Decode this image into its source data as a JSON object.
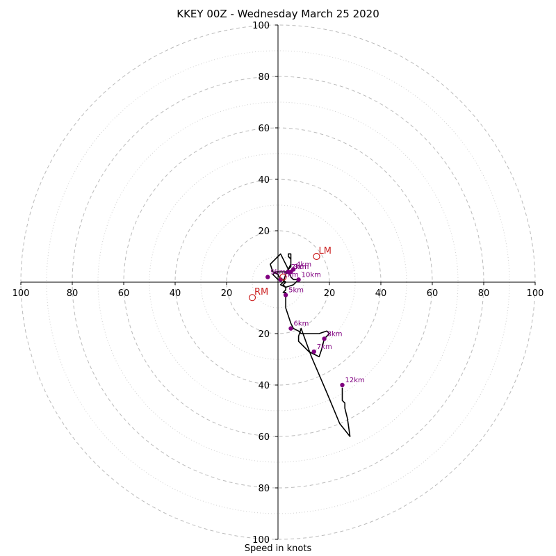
{
  "chart_data": {
    "type": "hodograph",
    "title": "KKEY 00Z - Wednesday March 25 2020",
    "xlabel": "Speed in knots",
    "ylabel": "",
    "range": [
      -100,
      100
    ],
    "major_rings": [
      20,
      40,
      60,
      80,
      100
    ],
    "minor_rings": [
      10,
      30,
      50,
      70,
      90
    ],
    "x_ticks": [
      "100",
      "80",
      "60",
      "40",
      "20",
      "20",
      "40",
      "60",
      "80",
      "100"
    ],
    "y_ticks": [
      "100",
      "80",
      "60",
      "40",
      "20",
      "20",
      "40",
      "60",
      "80",
      "100"
    ],
    "grid": true,
    "colors": {
      "trace": "#000000",
      "height_marker": "#800080",
      "motion_marker": "#cc2222",
      "grid": "#bbbbbb"
    },
    "trace": [
      [
        0,
        1
      ],
      [
        -1,
        2
      ],
      [
        -2,
        3
      ],
      [
        -1,
        4
      ],
      [
        1,
        4
      ],
      [
        3,
        4
      ],
      [
        4,
        5
      ],
      [
        5,
        6
      ],
      [
        5,
        8
      ],
      [
        5,
        9
      ],
      [
        4,
        10
      ],
      [
        4,
        11
      ],
      [
        5,
        11
      ],
      [
        5,
        9
      ],
      [
        5,
        7
      ],
      [
        4,
        5
      ],
      [
        3,
        3
      ],
      [
        2,
        0
      ],
      [
        1,
        -1
      ],
      [
        3,
        -2
      ],
      [
        6,
        -1
      ],
      [
        8,
        1
      ],
      [
        6,
        1
      ],
      [
        5,
        2
      ],
      [
        4,
        5
      ],
      [
        2,
        9
      ],
      [
        1,
        11
      ],
      [
        0,
        10
      ],
      [
        -1,
        9
      ],
      [
        -3,
        7
      ],
      [
        -2,
        4
      ],
      [
        0,
        3
      ],
      [
        1,
        1
      ],
      [
        2,
        1
      ],
      [
        3,
        0
      ],
      [
        2,
        -1
      ],
      [
        3,
        -2
      ],
      [
        3,
        -3
      ],
      [
        2,
        -4
      ],
      [
        3,
        -4
      ],
      [
        3,
        -7
      ],
      [
        3,
        -10
      ],
      [
        4,
        -13
      ],
      [
        5,
        -16
      ],
      [
        6,
        -18
      ],
      [
        8,
        -19
      ],
      [
        9,
        -20
      ],
      [
        16,
        -20
      ],
      [
        19,
        -19
      ],
      [
        20,
        -20
      ],
      [
        18,
        -22
      ],
      [
        17,
        -26
      ],
      [
        16,
        -29
      ],
      [
        14,
        -28
      ],
      [
        12,
        -27
      ],
      [
        10,
        -25
      ],
      [
        8,
        -23
      ],
      [
        8,
        -21
      ],
      [
        9,
        -18
      ],
      [
        13,
        -29
      ],
      [
        19,
        -43
      ],
      [
        24,
        -55
      ],
      [
        28,
        -60
      ],
      [
        27,
        -53
      ],
      [
        26,
        -49
      ],
      [
        26,
        -47
      ],
      [
        25,
        -46
      ],
      [
        25,
        -42
      ],
      [
        25,
        -41
      ]
    ],
    "height_markers": [
      {
        "label": "1km",
        "u": 1,
        "v": 1
      },
      {
        "label": "2km",
        "u": 4,
        "v": 4
      },
      {
        "label": "3km",
        "u": 5,
        "v": 4
      },
      {
        "label": "4km",
        "u": 6,
        "v": 5
      },
      {
        "label": "5km",
        "u": 3,
        "v": -5
      },
      {
        "label": "6km",
        "u": 5,
        "v": -18
      },
      {
        "label": "7km",
        "u": 14,
        "v": -27
      },
      {
        "label": "8km",
        "u": 18,
        "v": -22
      },
      {
        "label": "12km",
        "u": 25,
        "v": -40
      },
      {
        "label": "9km",
        "u": -4,
        "v": 2
      },
      {
        "label": "10km",
        "u": 8,
        "v": 1
      }
    ],
    "storm_motion": [
      {
        "label": "LM",
        "u": 15,
        "v": 10
      },
      {
        "label": "RM",
        "u": -10,
        "v": -6
      },
      {
        "label": "",
        "u": 2,
        "v": 2
      }
    ]
  }
}
